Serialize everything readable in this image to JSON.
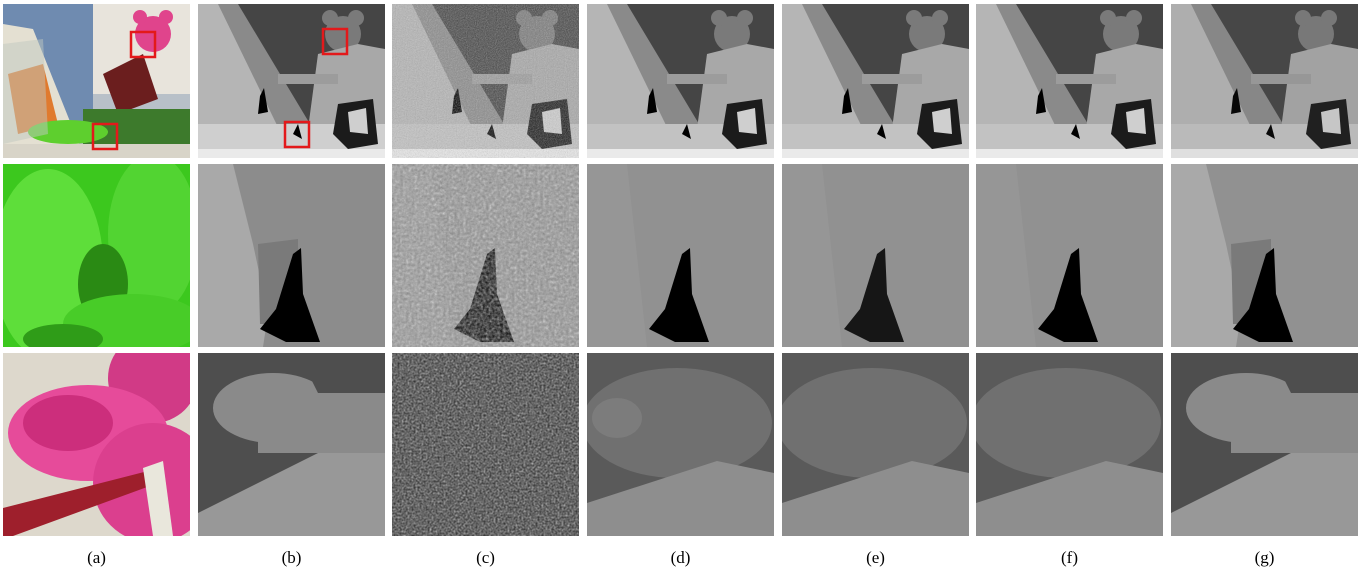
{
  "figure": {
    "column_labels": [
      "(a)",
      "(b)",
      "(c)",
      "(d)",
      "(e)",
      "(f)",
      "(g)"
    ],
    "columns": [
      {
        "id": "a",
        "content": "color image (teddy scene) with zoomed color patches"
      },
      {
        "id": "b",
        "content": "ground-truth depth map with zoomed patches"
      },
      {
        "id": "c",
        "content": "noisy depth map with zoomed patches"
      },
      {
        "id": "d",
        "content": "restored depth map with zoomed patches"
      },
      {
        "id": "e",
        "content": "restored depth map with zoomed patches"
      },
      {
        "id": "f",
        "content": "restored depth map with zoomed patches"
      },
      {
        "id": "g",
        "content": "restored depth map with zoomed patches"
      }
    ],
    "highlight_color": "#e3191b"
  }
}
